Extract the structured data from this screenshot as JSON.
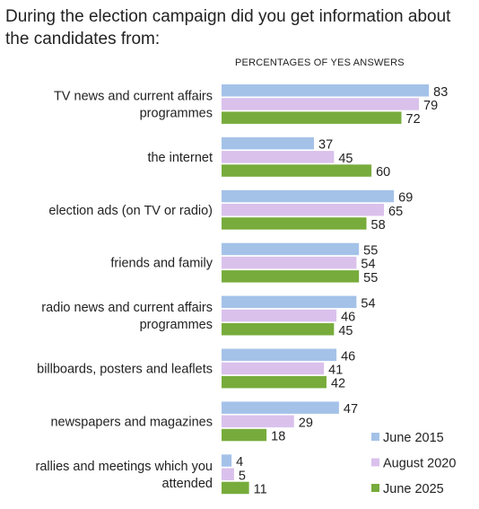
{
  "chart_data": {
    "type": "bar",
    "orientation": "horizontal",
    "title": "During the election campaign did you get information about the candidates from:",
    "subtitle": "PERCENTAGES OF YES ANSWERS",
    "categories": [
      [
        "TV news and current affairs",
        "programmes"
      ],
      [
        "the internet"
      ],
      [
        "election ads (on TV or radio)"
      ],
      [
        "friends and family"
      ],
      [
        "radio news and current affairs",
        "programmes"
      ],
      [
        "billboards, posters and leaflets"
      ],
      [
        "newspapers and magazines"
      ],
      [
        "rallies and meetings which you",
        "attended"
      ]
    ],
    "series": [
      {
        "name": "June 2015",
        "color": "#a4c2e8",
        "values": [
          83,
          37,
          69,
          55,
          54,
          46,
          47,
          4
        ]
      },
      {
        "name": "August 2020",
        "color": "#d9c1ec",
        "values": [
          79,
          45,
          65,
          54,
          46,
          41,
          29,
          5
        ]
      },
      {
        "name": "June 2025",
        "color": "#77ac3c",
        "values": [
          72,
          60,
          58,
          55,
          45,
          42,
          18,
          11
        ]
      }
    ],
    "xlim": [
      0,
      100
    ],
    "grid": false,
    "legend": "bottom-right"
  }
}
